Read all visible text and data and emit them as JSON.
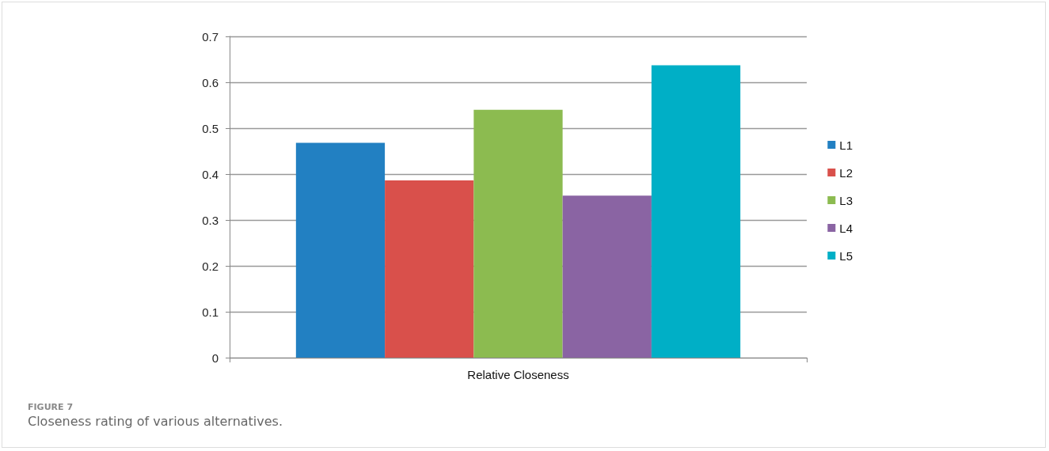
{
  "chart_data": {
    "type": "bar",
    "categories": [
      "Relative Closeness"
    ],
    "series": [
      {
        "name": "L1",
        "color": "#2280c2",
        "values": [
          0.468
        ]
      },
      {
        "name": "L2",
        "color": "#d9504b",
        "values": [
          0.386
        ]
      },
      {
        "name": "L3",
        "color": "#8cbb50",
        "values": [
          0.54
        ]
      },
      {
        "name": "L4",
        "color": "#8a64a3",
        "values": [
          0.353
        ]
      },
      {
        "name": "L5",
        "color": "#00afc6",
        "values": [
          0.637
        ]
      }
    ],
    "ylim": [
      0,
      0.7
    ],
    "yticks": [
      0,
      0.1,
      0.2,
      0.3,
      0.4,
      0.5,
      0.6,
      0.7
    ],
    "grid": "y",
    "legend": "right",
    "annotations": [
      "FIGURE 7",
      "Closeness rating of various alternatives."
    ]
  }
}
